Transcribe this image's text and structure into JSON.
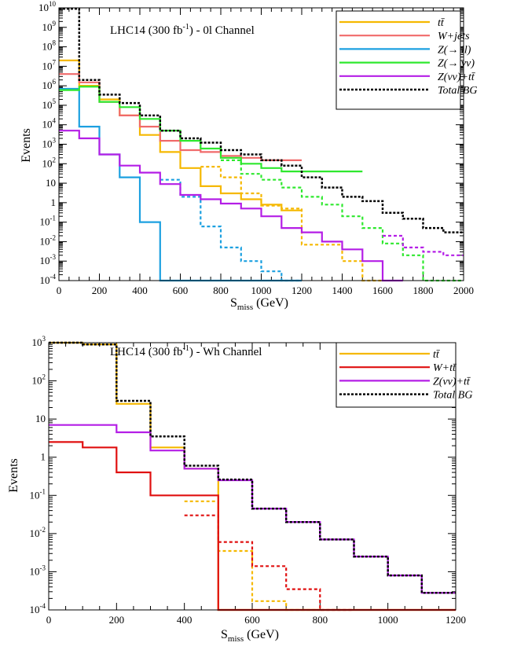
{
  "chart_data": [
    {
      "type": "line",
      "step": true,
      "title": "LHC14 (300 fb-1) - 0l Channel",
      "title_parts": [
        "LHC14 (300  fb",
        "-1",
        ") - 0l Channel"
      ],
      "xlabel": "S",
      "xlabel_sub": "miss",
      "xlabel_unit": " (GeV)",
      "ylabel": "Events",
      "xlim": [
        0,
        2000
      ],
      "ylim": [
        0.0001,
        10000000000
      ],
      "yscale": "log",
      "xticks": [
        "0",
        "200",
        "400",
        "600",
        "800",
        "1000",
        "1200",
        "1400",
        "1600",
        "1800",
        "2000"
      ],
      "yticks": [
        {
          "base": "10",
          "exp": "-4"
        },
        {
          "base": "10",
          "exp": "-3"
        },
        {
          "base": "10",
          "exp": "-2"
        },
        {
          "base": "10",
          "exp": "-1"
        },
        {
          "base": "1",
          "exp": ""
        },
        {
          "base": "10",
          "exp": ""
        },
        {
          "base": "10",
          "exp": "2"
        },
        {
          "base": "10",
          "exp": "3"
        },
        {
          "base": "10",
          "exp": "4"
        },
        {
          "base": "10",
          "exp": "5"
        },
        {
          "base": "10",
          "exp": "6"
        },
        {
          "base": "10",
          "exp": "7"
        },
        {
          "base": "10",
          "exp": "8"
        },
        {
          "base": "10",
          "exp": "9"
        },
        {
          "base": "10",
          "exp": "10"
        }
      ],
      "legend_position": "top-right",
      "bin_edges": [
        0,
        100,
        200,
        300,
        400,
        500,
        600,
        700,
        800,
        900,
        1000,
        1100,
        1200,
        1300,
        1400,
        1500,
        1600,
        1700,
        1800,
        1900,
        2000
      ],
      "series": [
        {
          "name": "tt",
          "label": "tt̄",
          "color": "#f5b800",
          "style": "solid",
          "values": [
            20000000,
            1000000,
            200000,
            30000,
            3000,
            400,
            60,
            7,
            3,
            1.5,
            0.8,
            0.4,
            null,
            null,
            null,
            null,
            null,
            null,
            null,
            null
          ]
        },
        {
          "name": "tt",
          "label": "tt̄ (after cuts)",
          "legend": false,
          "color": "#f5b800",
          "style": "dashed",
          "values": [
            null,
            null,
            null,
            null,
            null,
            null,
            null,
            70,
            20,
            3,
            0.7,
            0.5,
            0.007,
            0.007,
            0.001,
            0.0001,
            null,
            null,
            null,
            null
          ]
        },
        {
          "name": "W+jets",
          "label": "W+jets",
          "color": "#f06a6a",
          "style": "solid",
          "values": [
            4000000,
            1500000,
            150000,
            30000,
            8000,
            1500,
            500,
            400,
            250,
            200,
            150,
            150,
            null,
            null,
            null,
            null,
            null,
            null,
            null,
            null
          ]
        },
        {
          "name": "Z(→ ll)",
          "label": "Z(→ ll)",
          "color": "#1ca0e0",
          "style": "solid",
          "values": [
            700000,
            8000,
            300,
            20,
            0.1,
            0.0001,
            0.0001,
            0.0001,
            0.0001,
            0.0001,
            0.0001,
            0.0001,
            null,
            null,
            null,
            null,
            null,
            null,
            null,
            null
          ]
        },
        {
          "name": "Z(→ ll)",
          "label": "Z(→ ll) (after cuts)",
          "legend": false,
          "color": "#1ca0e0",
          "style": "dashed",
          "values": [
            null,
            null,
            null,
            null,
            null,
            15,
            2,
            0.06,
            0.005,
            0.001,
            0.0003,
            0.0001,
            null,
            null,
            null,
            null,
            null,
            null,
            null,
            null
          ]
        },
        {
          "name": "Z(→ νν)",
          "label": "Z(→ νν)",
          "color": "#2ee82e",
          "style": "solid",
          "values": [
            600000,
            900000,
            150000,
            80000,
            20000,
            5000,
            1500,
            600,
            200,
            100,
            60,
            40,
            40,
            40,
            40,
            null,
            null,
            null,
            null,
            null
          ]
        },
        {
          "name": "Z(→ νν)",
          "label": "Z(→ νν) (after cuts)",
          "legend": false,
          "color": "#2ee82e",
          "style": "dashed",
          "values": [
            null,
            null,
            null,
            null,
            null,
            null,
            null,
            null,
            150,
            30,
            15,
            6,
            2,
            0.8,
            0.2,
            0.05,
            0.008,
            0.002,
            0.0001,
            0.0001
          ]
        },
        {
          "name": "Z(νν)+tt",
          "label": "Z(νν)+tt̄",
          "color": "#b41ee6",
          "style": "solid",
          "values": [
            5000,
            2000,
            300,
            80,
            35,
            9,
            2.5,
            1.5,
            0.9,
            0.5,
            0.2,
            0.05,
            0.03,
            0.01,
            0.004,
            0.001,
            0.0001,
            null,
            null,
            null
          ]
        },
        {
          "name": "Z(νν)+tt",
          "label": "Z(νν)+tt̄ (after cuts)",
          "legend": false,
          "color": "#b41ee6",
          "style": "dashed",
          "values": [
            null,
            null,
            null,
            null,
            null,
            null,
            null,
            null,
            null,
            null,
            null,
            null,
            null,
            null,
            null,
            null,
            0.02,
            0.005,
            0.003,
            0.002
          ]
        },
        {
          "name": "Total BG",
          "label": "Total BG",
          "color": "#000000",
          "style": "dotted",
          "values": [
            9000000000,
            2000000,
            350000,
            130000,
            30000,
            5000,
            2000,
            1200,
            500,
            300,
            150,
            80,
            20,
            6,
            2,
            1.2,
            0.3,
            0.15,
            0.05,
            0.03
          ]
        }
      ]
    },
    {
      "type": "line",
      "step": true,
      "title": "LHC14 (300 fb-1) - Wh Channel",
      "title_parts": [
        "LHC14 (300  fb",
        "-1",
        ") - Wh Channel"
      ],
      "xlabel": "S",
      "xlabel_sub": "miss",
      "xlabel_unit": " (GeV)",
      "ylabel": "Events",
      "xlim": [
        0,
        1200
      ],
      "ylim": [
        0.0001,
        1000
      ],
      "yscale": "log",
      "xticks": [
        "0",
        "200",
        "400",
        "600",
        "800",
        "1000",
        "1200"
      ],
      "yticks": [
        {
          "base": "10",
          "exp": "-4"
        },
        {
          "base": "10",
          "exp": "-3"
        },
        {
          "base": "10",
          "exp": "-2"
        },
        {
          "base": "10",
          "exp": "-1"
        },
        {
          "base": "1",
          "exp": ""
        },
        {
          "base": "10",
          "exp": ""
        },
        {
          "base": "10",
          "exp": "2"
        },
        {
          "base": "10",
          "exp": "3"
        }
      ],
      "legend_position": "top-right",
      "bin_edges": [
        0,
        100,
        200,
        300,
        400,
        500,
        600,
        700,
        800,
        900,
        1000,
        1100,
        1200
      ],
      "series": [
        {
          "name": "tt",
          "label": "tt̄",
          "color": "#f5b800",
          "style": "solid",
          "values": [
            1000,
            900,
            25,
            1.8,
            0.5,
            0.0001,
            0.0001,
            0.0001,
            0.0001,
            0.0001,
            0.0001,
            0.0001
          ]
        },
        {
          "name": "tt",
          "label": "tt̄ (after cuts)",
          "legend": false,
          "color": "#f5b800",
          "style": "dashed",
          "values": [
            null,
            null,
            null,
            null,
            0.07,
            0.0035,
            0.00017,
            0.0001,
            null,
            null,
            null,
            null
          ]
        },
        {
          "name": "W+tt",
          "label": "W+tt̄",
          "color": "#e01010",
          "style": "solid",
          "values": [
            2.5,
            1.8,
            0.4,
            0.1,
            0.1,
            0.0001,
            0.0001,
            0.0001,
            0.0001,
            0.0001,
            0.0001,
            0.0001
          ]
        },
        {
          "name": "W+tt",
          "label": "W+tt̄ (after cuts)",
          "legend": false,
          "color": "#e01010",
          "style": "dashed",
          "values": [
            null,
            null,
            null,
            null,
            0.03,
            0.006,
            0.0014,
            0.00035,
            0.0001,
            null,
            null,
            null
          ]
        },
        {
          "name": "Z(νν)+tt",
          "label": "Z(νν)+tt̄",
          "color": "#b41ee6",
          "style": "solid",
          "values": [
            7,
            7,
            4.5,
            1.5,
            0.5,
            0.25,
            0.045,
            0.02,
            0.007,
            0.0025,
            0.0008,
            0.00028
          ]
        },
        {
          "name": "Total BG",
          "label": "Total BG",
          "color": "#000000",
          "style": "dotted",
          "values": [
            1000,
            900,
            30,
            3.5,
            0.6,
            0.26,
            0.045,
            0.02,
            0.007,
            0.0025,
            0.0008,
            0.00028
          ]
        }
      ]
    }
  ]
}
